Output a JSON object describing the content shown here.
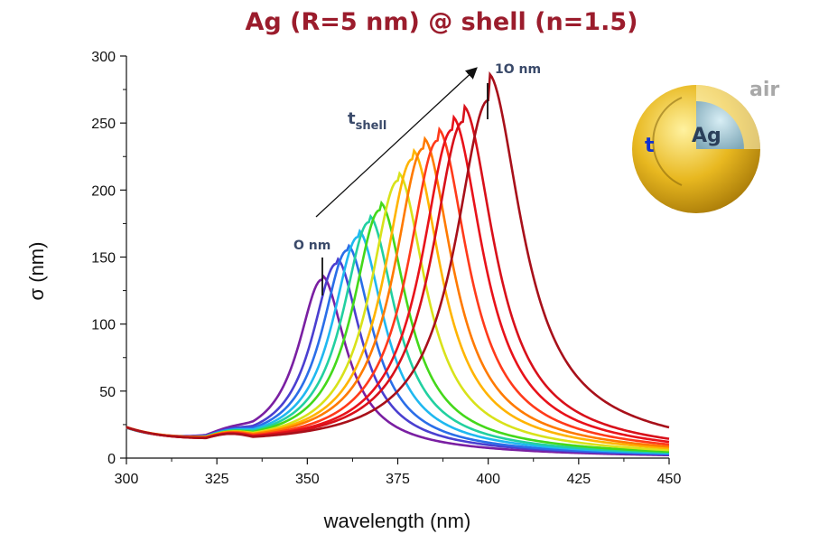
{
  "chart_data": {
    "type": "line",
    "title": "Ag (R=5 nm) @ shell (n=1.5)",
    "xlabel": "wavelength (nm)",
    "ylabel": "σ (nm)",
    "xlim": [
      300,
      450
    ],
    "ylim": [
      0,
      300
    ],
    "xticks": [
      300,
      325,
      350,
      375,
      400,
      425,
      450
    ],
    "yticks": [
      0,
      50,
      100,
      150,
      200,
      250,
      300
    ],
    "grid": false,
    "series_shape_note_free": true,
    "series": [
      {
        "color": "#7a1fa2",
        "peak_x": 354,
        "peak_y": 133,
        "width": 8.0,
        "tail_y": 3
      },
      {
        "color": "#4a3fd0",
        "peak_x": 358,
        "peak_y": 145,
        "width": 8.2,
        "tail_y": 4
      },
      {
        "color": "#2a6ee8",
        "peak_x": 361,
        "peak_y": 155,
        "width": 8.4,
        "tail_y": 4
      },
      {
        "color": "#1fb8f0",
        "peak_x": 364,
        "peak_y": 165,
        "width": 8.6,
        "tail_y": 5
      },
      {
        "color": "#22d0a0",
        "peak_x": 367,
        "peak_y": 176,
        "width": 8.8,
        "tail_y": 5
      },
      {
        "color": "#44d81a",
        "peak_x": 370,
        "peak_y": 185,
        "width": 9.0,
        "tail_y": 6
      },
      {
        "color": "#d8e21a",
        "peak_x": 375,
        "peak_y": 207,
        "width": 9.3,
        "tail_y": 6
      },
      {
        "color": "#ffb400",
        "peak_x": 379,
        "peak_y": 223,
        "width": 9.6,
        "tail_y": 7
      },
      {
        "color": "#ff7a00",
        "peak_x": 382,
        "peak_y": 231,
        "width": 9.8,
        "tail_y": 8
      },
      {
        "color": "#ff3a1a",
        "peak_x": 386,
        "peak_y": 237,
        "width": 10.0,
        "tail_y": 9
      },
      {
        "color": "#e8121a",
        "peak_x": 390,
        "peak_y": 245,
        "width": 10.2,
        "tail_y": 10
      },
      {
        "color": "#d8101a",
        "peak_x": 393,
        "peak_y": 251,
        "width": 10.4,
        "tail_y": 12
      },
      {
        "color": "#a8101a",
        "peak_x": 400,
        "peak_y": 267,
        "width": 11.0,
        "tail_y": 20
      }
    ],
    "annotations": {
      "start_label": "O nm",
      "end_label": "1O nm",
      "arrow_label_main": "t",
      "arrow_label_sub": "shell"
    },
    "inset": {
      "outer_label": "air",
      "core_label": "Ag",
      "shell_label": "t",
      "shell_color": "#f0c020",
      "core_color": "#9ec6d4"
    }
  }
}
